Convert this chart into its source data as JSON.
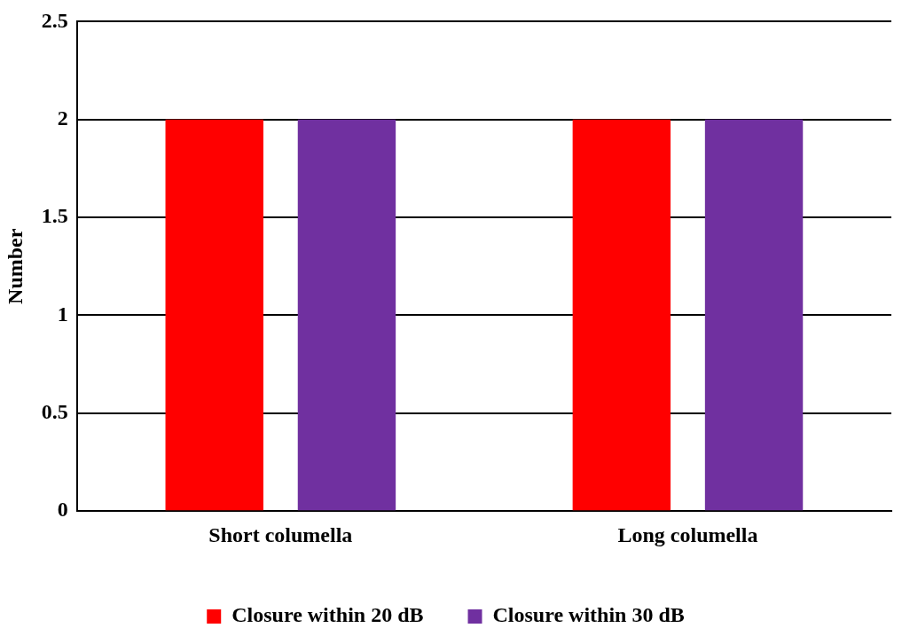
{
  "chart_data": {
    "type": "bar",
    "ylabel": "Number",
    "categories": [
      "Short columella",
      "Long columella"
    ],
    "series": [
      {
        "name": "Closure within 20 dB",
        "color": "#ff0000",
        "values": [
          2,
          2
        ]
      },
      {
        "name": "Closure within 30 dB",
        "color": "#7030a0",
        "values": [
          2,
          2
        ]
      }
    ],
    "ylim": [
      0,
      2.5
    ],
    "yticks": [
      0,
      0.5,
      1,
      1.5,
      2,
      2.5
    ],
    "grid": "y",
    "legend": "bottom"
  }
}
